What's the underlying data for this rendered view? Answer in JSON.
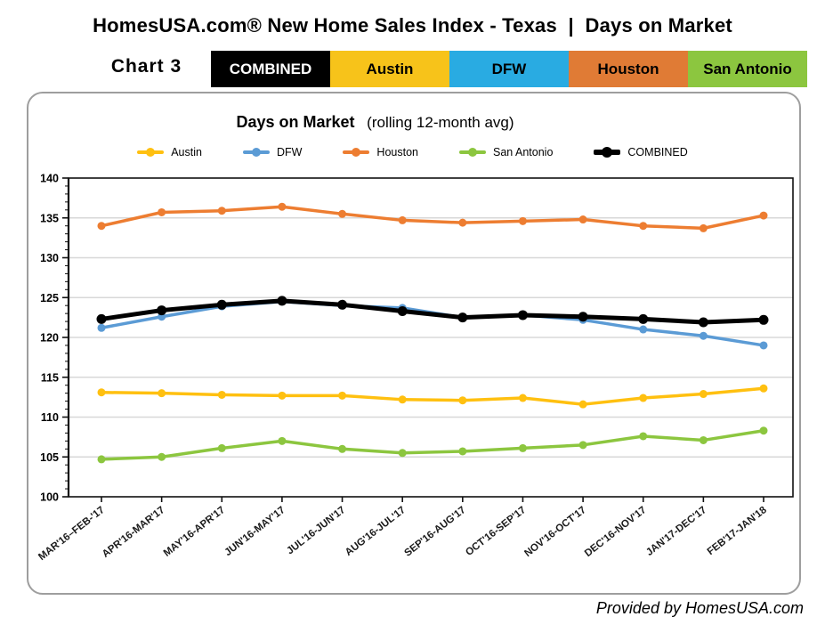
{
  "header": {
    "title": "HomesUSA.com® New Home Sales Index - Texas  |  Days on Market",
    "chart_label": "Chart 3",
    "tabs": [
      {
        "label": "COMBINED",
        "bg": "#000000",
        "fg": "#ffffff"
      },
      {
        "label": "Austin",
        "bg": "#f7c31a",
        "fg": "#000000"
      },
      {
        "label": "DFW",
        "bg": "#29abe2",
        "fg": "#000000"
      },
      {
        "label": "Houston",
        "bg": "#e07b35",
        "fg": "#000000"
      },
      {
        "label": "San Antonio",
        "bg": "#8cc63f",
        "fg": "#000000"
      }
    ]
  },
  "chart_data": {
    "type": "line",
    "title": "Days on Market",
    "subtitle": "(rolling 12-month avg)",
    "ylim": [
      100,
      140
    ],
    "ytick_step": 5,
    "grid": true,
    "legend_position": "top",
    "grid_color": "#d8d8d8",
    "axis_color": "#111111",
    "categories": [
      "MAR'16–FEB-'17",
      "APR'16-MAR'17",
      "MAY'16-APR'17",
      "JUN'16-MAY'17",
      "JUL'16-JUN'17",
      "AUG'16-JUL'17",
      "SEP'16-AUG'17",
      "OCT'16-SEP'17",
      "NOV'16-OCT'17",
      "DEC'16-NOV'17",
      "JAN'17-DEC'17",
      "FEB'17-JAN'18"
    ],
    "series": [
      {
        "name": "Austin",
        "color": "#ffc010",
        "width": 3.5,
        "values": [
          113.1,
          113.0,
          112.8,
          112.7,
          112.7,
          112.2,
          112.1,
          112.4,
          111.6,
          112.4,
          112.9,
          113.6
        ]
      },
      {
        "name": "DFW",
        "color": "#5b9bd5",
        "width": 3.5,
        "values": [
          121.2,
          122.6,
          123.9,
          124.5,
          124.0,
          123.7,
          122.5,
          122.8,
          122.2,
          121.0,
          120.2,
          119.0
        ]
      },
      {
        "name": "Houston",
        "color": "#ed7d31",
        "width": 3.5,
        "values": [
          134.0,
          135.7,
          135.9,
          136.4,
          135.5,
          134.7,
          134.4,
          134.6,
          134.8,
          134.0,
          133.7,
          135.3
        ]
      },
      {
        "name": "San Antonio",
        "color": "#8cc63f",
        "width": 3.5,
        "values": [
          104.7,
          105.0,
          106.1,
          107.0,
          106.0,
          105.5,
          105.7,
          106.1,
          106.5,
          107.6,
          107.1,
          108.3
        ]
      },
      {
        "name": "COMBINED",
        "color": "#000000",
        "width": 5,
        "values": [
          122.3,
          123.4,
          124.1,
          124.6,
          124.1,
          123.3,
          122.5,
          122.8,
          122.6,
          122.3,
          121.9,
          122.2
        ]
      }
    ]
  },
  "footer": {
    "credit": "Provided by HomesUSA.com"
  }
}
